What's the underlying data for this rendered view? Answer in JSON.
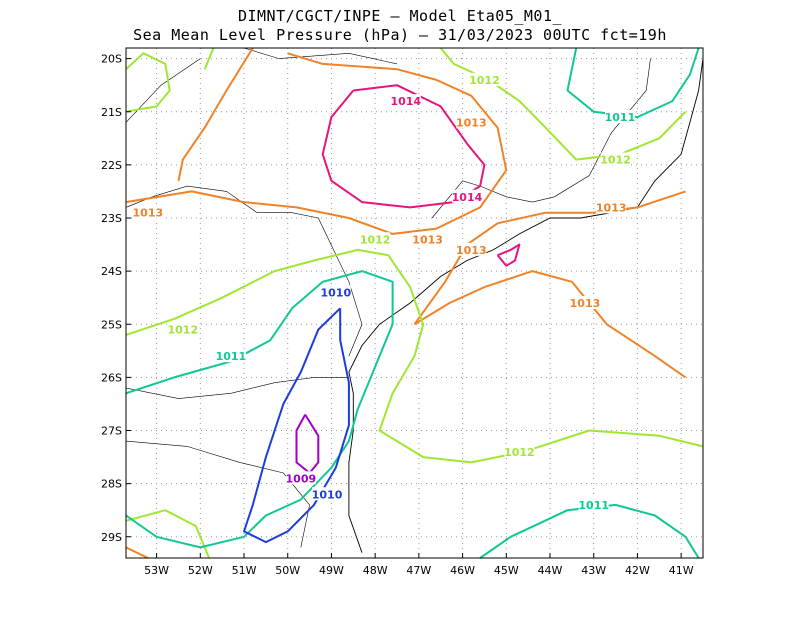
{
  "title": {
    "line1": "DIMNT/CGCT/INPE –  Model Eta05_M01_",
    "line2": "Sea Mean Level Pressure (hPa) – 31/03/2023 00UTC fct=19h"
  },
  "map": {
    "lon_range": [
      -53.7,
      -40.5
    ],
    "lat_range": [
      -29.4,
      -19.8
    ],
    "x_ticks": [
      "53W",
      "52W",
      "51W",
      "50W",
      "49W",
      "48W",
      "47W",
      "46W",
      "45W",
      "44W",
      "43W",
      "42W",
      "41W"
    ],
    "y_ticks": [
      "20S",
      "21S",
      "22S",
      "23S",
      "24S",
      "25S",
      "26S",
      "27S",
      "28S",
      "29S"
    ],
    "grid": true
  },
  "colors": {
    "1009": "#a000c8",
    "1010": "#1e3cdc",
    "1011": "#10c896",
    "1012": "#a0e632",
    "1013": "#f08228",
    "1014": "#e6147d",
    "coast": "#000000",
    "grid": "#999999"
  },
  "contour_labels": [
    {
      "text": "1014",
      "lon": -47.3,
      "lat": -20.8,
      "level": "1014"
    },
    {
      "text": "1014",
      "lon": -45.9,
      "lat": -22.6,
      "level": "1014"
    },
    {
      "text": "1013",
      "lon": -53.2,
      "lat": -22.9,
      "level": "1013"
    },
    {
      "text": "1013",
      "lon": -46.8,
      "lat": -23.4,
      "level": "1013"
    },
    {
      "text": "1013",
      "lon": -45.8,
      "lat": -23.6,
      "level": "1013"
    },
    {
      "text": "1013",
      "lon": -45.8,
      "lat": -21.2,
      "level": "1013"
    },
    {
      "text": "1013",
      "lon": -42.6,
      "lat": -22.8,
      "level": "1013"
    },
    {
      "text": "1013",
      "lon": -43.2,
      "lat": -24.6,
      "level": "1013"
    },
    {
      "text": "1012",
      "lon": -45.5,
      "lat": -20.4,
      "level": "1012"
    },
    {
      "text": "1012",
      "lon": -42.5,
      "lat": -21.9,
      "level": "1012"
    },
    {
      "text": "1012",
      "lon": -48.0,
      "lat": -23.4,
      "level": "1012"
    },
    {
      "text": "1012",
      "lon": -52.4,
      "lat": -25.1,
      "level": "1012"
    },
    {
      "text": "1012",
      "lon": -44.7,
      "lat": -27.4,
      "level": "1012"
    },
    {
      "text": "1011",
      "lon": -42.4,
      "lat": -21.1,
      "level": "1011"
    },
    {
      "text": "1011",
      "lon": -51.3,
      "lat": -25.6,
      "level": "1011"
    },
    {
      "text": "1011",
      "lon": -43.0,
      "lat": -28.4,
      "level": "1011"
    },
    {
      "text": "1010",
      "lon": -48.9,
      "lat": -24.4,
      "level": "1010"
    },
    {
      "text": "1010",
      "lon": -49.1,
      "lat": -28.2,
      "level": "1010"
    },
    {
      "text": "1009",
      "lon": -49.7,
      "lat": -27.9,
      "level": "1009"
    }
  ],
  "contours": [
    {
      "level": "1014",
      "pts": [
        [
          -48.5,
          -20.6
        ],
        [
          -47.5,
          -20.5
        ],
        [
          -46.5,
          -20.9
        ],
        [
          -45.9,
          -21.6
        ],
        [
          -45.5,
          -22.0
        ],
        [
          -45.6,
          -22.4
        ],
        [
          -46.2,
          -22.7
        ],
        [
          -47.2,
          -22.8
        ],
        [
          -48.3,
          -22.7
        ],
        [
          -49.0,
          -22.3
        ],
        [
          -49.2,
          -21.8
        ],
        [
          -49.0,
          -21.1
        ],
        [
          -48.5,
          -20.6
        ]
      ]
    },
    {
      "level": "1014",
      "pts": [
        [
          -45.2,
          -23.7
        ],
        [
          -44.9,
          -23.6
        ],
        [
          -44.7,
          -23.5
        ],
        [
          -44.8,
          -23.8
        ],
        [
          -45.0,
          -23.9
        ],
        [
          -45.2,
          -23.7
        ]
      ]
    },
    {
      "level": "1013",
      "pts": [
        [
          -50.0,
          -19.9
        ],
        [
          -49.2,
          -20.1
        ],
        [
          -47.5,
          -20.2
        ],
        [
          -46.6,
          -20.4
        ],
        [
          -45.8,
          -20.7
        ],
        [
          -45.2,
          -21.3
        ],
        [
          -45.0,
          -22.1
        ],
        [
          -45.6,
          -22.8
        ],
        [
          -46.6,
          -23.2
        ],
        [
          -47.6,
          -23.3
        ],
        [
          -48.6,
          -23.0
        ],
        [
          -49.8,
          -22.8
        ],
        [
          -51.0,
          -22.7
        ],
        [
          -52.2,
          -22.5
        ],
        [
          -53.7,
          -22.7
        ]
      ]
    },
    {
      "level": "1013",
      "pts": [
        [
          -50.8,
          -19.8
        ],
        [
          -51.4,
          -20.6
        ],
        [
          -51.9,
          -21.3
        ],
        [
          -52.4,
          -21.9
        ],
        [
          -52.5,
          -22.3
        ]
      ]
    },
    {
      "level": "1013",
      "pts": [
        [
          -47.1,
          -25.0
        ],
        [
          -46.3,
          -24.6
        ],
        [
          -45.5,
          -24.3
        ],
        [
          -44.4,
          -24.0
        ],
        [
          -43.5,
          -24.2
        ],
        [
          -42.7,
          -25.0
        ],
        [
          -41.6,
          -25.6
        ],
        [
          -40.9,
          -26.0
        ]
      ]
    },
    {
      "level": "1013",
      "pts": [
        [
          -47.1,
          -25.0
        ],
        [
          -46.4,
          -24.2
        ],
        [
          -45.9,
          -23.5
        ],
        [
          -45.2,
          -23.1
        ],
        [
          -44.1,
          -22.9
        ],
        [
          -43.0,
          -22.9
        ],
        [
          -42.0,
          -22.8
        ],
        [
          -40.9,
          -22.5
        ]
      ]
    },
    {
      "level": "1013",
      "pts": [
        [
          -53.7,
          -29.2
        ],
        [
          -53.2,
          -29.4
        ]
      ]
    },
    {
      "level": "1012",
      "pts": [
        [
          -46.5,
          -19.8
        ],
        [
          -46.2,
          -20.1
        ],
        [
          -45.4,
          -20.4
        ],
        [
          -44.7,
          -20.8
        ],
        [
          -44.1,
          -21.3
        ],
        [
          -43.4,
          -21.9
        ],
        [
          -42.4,
          -21.8
        ],
        [
          -41.5,
          -21.5
        ],
        [
          -40.9,
          -21.0
        ]
      ]
    },
    {
      "level": "1012",
      "pts": [
        [
          -53.7,
          -20.2
        ],
        [
          -53.3,
          -19.9
        ],
        [
          -52.8,
          -20.1
        ],
        [
          -52.7,
          -20.6
        ],
        [
          -53.0,
          -20.9
        ],
        [
          -53.7,
          -21.0
        ]
      ]
    },
    {
      "level": "1012",
      "pts": [
        [
          -51.7,
          -19.8
        ],
        [
          -51.9,
          -20.2
        ]
      ]
    },
    {
      "level": "1012",
      "pts": [
        [
          -53.7,
          -25.2
        ],
        [
          -52.6,
          -24.9
        ],
        [
          -51.5,
          -24.5
        ],
        [
          -50.3,
          -24.0
        ],
        [
          -49.4,
          -23.8
        ],
        [
          -48.4,
          -23.6
        ],
        [
          -47.7,
          -23.7
        ],
        [
          -47.2,
          -24.3
        ],
        [
          -46.9,
          -25.0
        ],
        [
          -47.1,
          -25.6
        ],
        [
          -47.6,
          -26.3
        ],
        [
          -47.9,
          -27.0
        ],
        [
          -46.9,
          -27.5
        ],
        [
          -45.8,
          -27.6
        ],
        [
          -44.6,
          -27.4
        ],
        [
          -43.1,
          -27.0
        ],
        [
          -41.5,
          -27.1
        ],
        [
          -40.5,
          -27.3
        ]
      ]
    },
    {
      "level": "1012",
      "pts": [
        [
          -53.7,
          -28.7
        ],
        [
          -52.8,
          -28.5
        ],
        [
          -52.1,
          -28.8
        ],
        [
          -51.8,
          -29.4
        ]
      ]
    },
    {
      "level": "1011",
      "pts": [
        [
          -43.4,
          -19.8
        ],
        [
          -43.6,
          -20.6
        ],
        [
          -43.0,
          -21.0
        ],
        [
          -42.0,
          -21.1
        ],
        [
          -41.2,
          -20.8
        ],
        [
          -40.8,
          -20.3
        ],
        [
          -40.6,
          -19.8
        ]
      ]
    },
    {
      "level": "1011",
      "pts": [
        [
          -53.7,
          -26.3
        ],
        [
          -52.6,
          -26.0
        ],
        [
          -51.3,
          -25.7
        ],
        [
          -50.4,
          -25.3
        ],
        [
          -49.9,
          -24.7
        ],
        [
          -49.2,
          -24.2
        ],
        [
          -48.3,
          -24.0
        ],
        [
          -47.6,
          -24.2
        ],
        [
          -47.6,
          -25.0
        ],
        [
          -47.9,
          -25.6
        ],
        [
          -48.4,
          -26.6
        ],
        [
          -48.6,
          -27.2
        ],
        [
          -49.0,
          -27.7
        ],
        [
          -49.7,
          -28.3
        ],
        [
          -50.5,
          -28.6
        ],
        [
          -51.0,
          -29.0
        ],
        [
          -52.0,
          -29.2
        ],
        [
          -53.0,
          -29.0
        ],
        [
          -53.7,
          -28.6
        ]
      ]
    },
    {
      "level": "1011",
      "pts": [
        [
          -45.6,
          -29.4
        ],
        [
          -44.9,
          -29.0
        ],
        [
          -43.6,
          -28.5
        ],
        [
          -42.5,
          -28.4
        ],
        [
          -41.6,
          -28.6
        ],
        [
          -40.9,
          -29.0
        ],
        [
          -40.6,
          -29.4
        ]
      ]
    },
    {
      "level": "1010",
      "pts": [
        [
          -48.8,
          -24.7
        ],
        [
          -49.3,
          -25.1
        ],
        [
          -49.7,
          -25.9
        ],
        [
          -50.1,
          -26.5
        ],
        [
          -50.5,
          -27.5
        ],
        [
          -50.8,
          -28.4
        ],
        [
          -51.0,
          -28.9
        ],
        [
          -50.5,
          -29.1
        ],
        [
          -50.0,
          -28.9
        ],
        [
          -49.4,
          -28.4
        ],
        [
          -48.9,
          -27.7
        ],
        [
          -48.6,
          -26.9
        ],
        [
          -48.6,
          -26.1
        ],
        [
          -48.8,
          -25.3
        ],
        [
          -48.8,
          -24.7
        ]
      ]
    },
    {
      "level": "1009",
      "pts": [
        [
          -49.6,
          -26.7
        ],
        [
          -49.3,
          -27.1
        ],
        [
          -49.3,
          -27.6
        ],
        [
          -49.5,
          -27.8
        ],
        [
          -49.8,
          -27.6
        ],
        [
          -49.8,
          -27.0
        ],
        [
          -49.6,
          -26.7
        ]
      ]
    }
  ],
  "coastline": [
    [
      [
        -48.3,
        -29.3
      ],
      [
        -48.6,
        -28.6
      ],
      [
        -48.6,
        -27.6
      ],
      [
        -48.5,
        -27.0
      ],
      [
        -48.5,
        -26.3
      ],
      [
        -48.6,
        -25.9
      ],
      [
        -48.3,
        -25.4
      ],
      [
        -47.9,
        -25.0
      ],
      [
        -47.2,
        -24.6
      ],
      [
        -46.5,
        -24.1
      ],
      [
        -45.9,
        -23.8
      ],
      [
        -45.3,
        -23.6
      ],
      [
        -44.7,
        -23.3
      ],
      [
        -44.0,
        -23.0
      ],
      [
        -43.3,
        -23.0
      ],
      [
        -42.6,
        -22.9
      ],
      [
        -42.0,
        -22.8
      ],
      [
        -41.6,
        -22.3
      ],
      [
        -41.0,
        -21.8
      ],
      [
        -40.8,
        -21.2
      ],
      [
        -40.6,
        -20.6
      ],
      [
        -40.5,
        -20.0
      ]
    ]
  ],
  "borders": [
    [
      [
        -53.7,
        -22.8
      ],
      [
        -53.1,
        -22.6
      ],
      [
        -52.3,
        -22.4
      ],
      [
        -51.4,
        -22.5
      ],
      [
        -50.7,
        -22.9
      ],
      [
        -49.9,
        -22.9
      ],
      [
        -49.3,
        -23.0
      ],
      [
        -48.6,
        -24.2
      ],
      [
        -48.3,
        -25.0
      ],
      [
        -48.6,
        -25.6
      ]
    ],
    [
      [
        -53.7,
        -26.2
      ],
      [
        -52.5,
        -26.4
      ],
      [
        -51.3,
        -26.3
      ],
      [
        -50.3,
        -26.1
      ],
      [
        -49.4,
        -26.0
      ],
      [
        -48.6,
        -26.0
      ]
    ],
    [
      [
        -53.7,
        -27.2
      ],
      [
        -52.3,
        -27.3
      ],
      [
        -51.1,
        -27.6
      ],
      [
        -50.1,
        -27.8
      ],
      [
        -49.5,
        -28.4
      ],
      [
        -49.7,
        -29.2
      ]
    ],
    [
      [
        -46.7,
        -23.0
      ],
      [
        -46.0,
        -22.3
      ],
      [
        -45.6,
        -22.4
      ],
      [
        -45.0,
        -22.6
      ],
      [
        -44.4,
        -22.7
      ],
      [
        -43.9,
        -22.6
      ],
      [
        -43.1,
        -22.2
      ],
      [
        -42.6,
        -21.4
      ],
      [
        -42.2,
        -21.0
      ],
      [
        -41.8,
        -20.6
      ],
      [
        -41.7,
        -20.0
      ]
    ],
    [
      [
        -47.5,
        -20.1
      ],
      [
        -48.6,
        -19.9
      ],
      [
        -50.2,
        -20.0
      ],
      [
        -51.0,
        -19.8
      ]
    ],
    [
      [
        -53.7,
        -21.2
      ],
      [
        -52.9,
        -20.5
      ],
      [
        -52.0,
        -20.0
      ]
    ]
  ]
}
